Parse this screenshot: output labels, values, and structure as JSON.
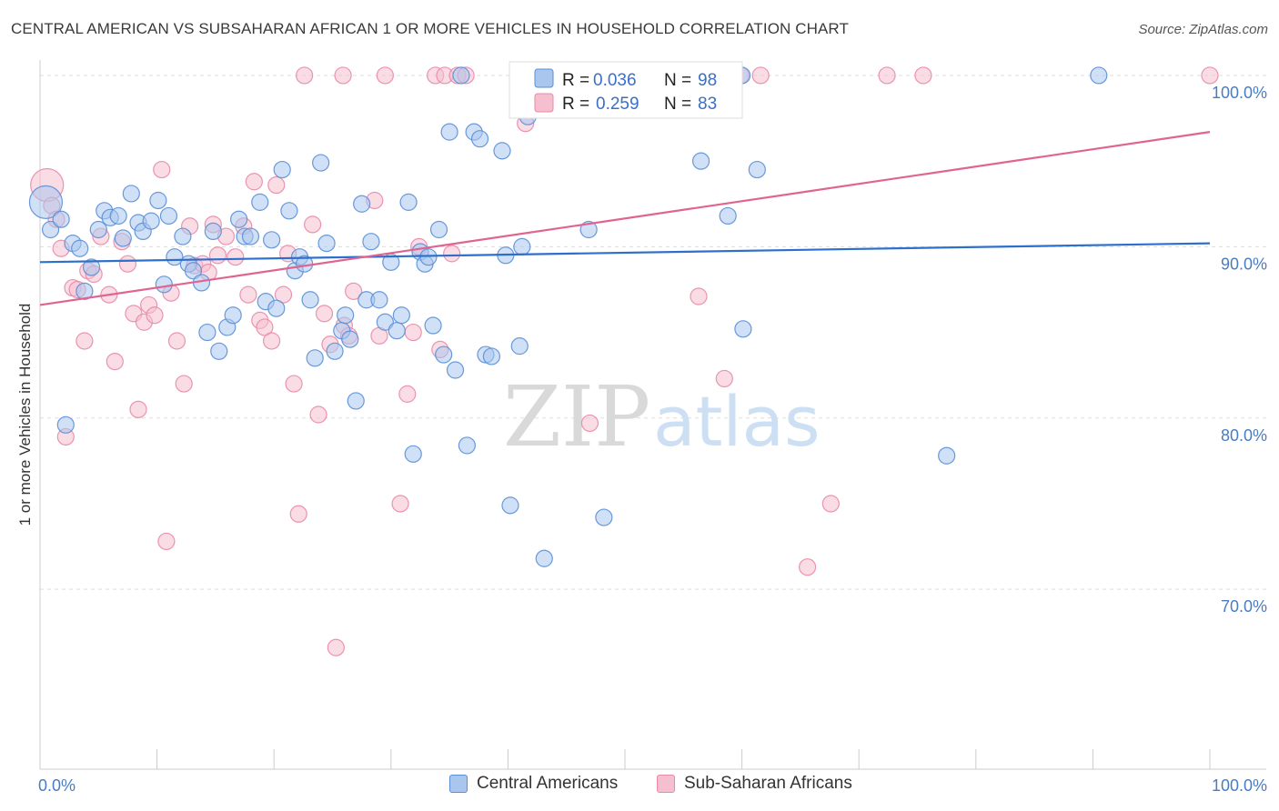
{
  "title": "CENTRAL AMERICAN VS SUBSAHARAN AFRICAN 1 OR MORE VEHICLES IN HOUSEHOLD CORRELATION CHART",
  "source": "Source: ZipAtlas.com",
  "watermark": {
    "zip": "ZIP",
    "atlas": "atlas"
  },
  "legend_stats": [
    {
      "r_label": "R =",
      "r_value": "0.036",
      "n_label": "N =",
      "n_value": "98"
    },
    {
      "r_label": "R =",
      "r_value": "0.259",
      "n_label": "N =",
      "n_value": "83"
    }
  ],
  "legend": {
    "central": "Central Americans",
    "subsaharan": "Sub-Saharan Africans"
  },
  "colors": {
    "central_fill": "#a9c7ee",
    "central_stroke": "#5a8fd6",
    "central_line": "#2f6fcc",
    "subsaharan_fill": "#f6bfd0",
    "subsaharan_stroke": "#e88aa8",
    "subsaharan_line": "#e06492",
    "tick_text": "#4a7cc4",
    "grid": "#dddddd"
  },
  "chart_data": {
    "type": "scatter",
    "title": "CENTRAL AMERICAN VS SUBSAHARAN AFRICAN 1 OR MORE VEHICLES IN HOUSEHOLD CORRELATION CHART",
    "xlabel": "",
    "ylabel": "1 or more Vehicles in Household",
    "xlim": [
      0,
      100
    ],
    "ylim": [
      59.5,
      100.9
    ],
    "x_tick_labels": [
      "0.0%",
      "100.0%"
    ],
    "y_ticks": [
      70,
      80,
      90,
      100
    ],
    "y_tick_labels": [
      "70.0%",
      "80.0%",
      "90.0%",
      "100.0%"
    ],
    "series": [
      {
        "name": "Central Americans",
        "r": 0.036,
        "n": 98,
        "trend": {
          "x": [
            0,
            100
          ],
          "y": [
            89.1,
            90.2
          ]
        },
        "points": [
          [
            0.5,
            92.6
          ],
          [
            0.9,
            91.0
          ],
          [
            1.8,
            91.6
          ],
          [
            2.2,
            79.6
          ],
          [
            2.8,
            90.2
          ],
          [
            3.4,
            89.9
          ],
          [
            3.8,
            87.4
          ],
          [
            4.4,
            88.8
          ],
          [
            5.0,
            91.0
          ],
          [
            5.5,
            92.1
          ],
          [
            6.0,
            91.7
          ],
          [
            6.7,
            91.8
          ],
          [
            7.1,
            90.5
          ],
          [
            7.8,
            93.1
          ],
          [
            8.4,
            91.4
          ],
          [
            8.8,
            90.9
          ],
          [
            9.5,
            91.5
          ],
          [
            10.1,
            92.7
          ],
          [
            10.6,
            87.8
          ],
          [
            11.0,
            91.8
          ],
          [
            11.5,
            89.4
          ],
          [
            12.2,
            90.6
          ],
          [
            12.7,
            89.0
          ],
          [
            13.1,
            88.6
          ],
          [
            13.8,
            87.9
          ],
          [
            14.3,
            85.0
          ],
          [
            14.8,
            90.9
          ],
          [
            15.3,
            83.9
          ],
          [
            16.0,
            85.3
          ],
          [
            16.5,
            86.0
          ],
          [
            17.0,
            91.6
          ],
          [
            17.5,
            90.6
          ],
          [
            18.0,
            90.6
          ],
          [
            18.8,
            92.6
          ],
          [
            19.3,
            86.8
          ],
          [
            19.8,
            90.4
          ],
          [
            20.2,
            86.4
          ],
          [
            20.7,
            94.5
          ],
          [
            21.3,
            92.1
          ],
          [
            21.8,
            88.6
          ],
          [
            22.2,
            89.4
          ],
          [
            22.6,
            89.0
          ],
          [
            23.1,
            86.9
          ],
          [
            23.5,
            83.5
          ],
          [
            24.0,
            94.9
          ],
          [
            24.5,
            90.2
          ],
          [
            25.2,
            83.9
          ],
          [
            25.8,
            85.1
          ],
          [
            26.1,
            86.0
          ],
          [
            26.5,
            84.6
          ],
          [
            27.0,
            81.0
          ],
          [
            27.5,
            92.5
          ],
          [
            27.9,
            86.9
          ],
          [
            28.3,
            90.3
          ],
          [
            29.0,
            86.9
          ],
          [
            29.5,
            85.6
          ],
          [
            30.0,
            89.1
          ],
          [
            30.5,
            85.1
          ],
          [
            30.9,
            86.0
          ],
          [
            31.5,
            92.6
          ],
          [
            31.9,
            77.9
          ],
          [
            32.5,
            89.7
          ],
          [
            32.9,
            89.0
          ],
          [
            33.2,
            89.4
          ],
          [
            33.6,
            85.4
          ],
          [
            34.1,
            91.0
          ],
          [
            34.5,
            83.7
          ],
          [
            35.0,
            96.7
          ],
          [
            35.5,
            82.8
          ],
          [
            36.0,
            100.0
          ],
          [
            36.5,
            78.4
          ],
          [
            37.1,
            96.7
          ],
          [
            37.6,
            96.3
          ],
          [
            38.1,
            83.7
          ],
          [
            38.6,
            83.6
          ],
          [
            39.5,
            95.6
          ],
          [
            39.8,
            89.5
          ],
          [
            40.2,
            74.9
          ],
          [
            41.0,
            84.2
          ],
          [
            41.2,
            90.0
          ],
          [
            41.7,
            97.6
          ],
          [
            42.3,
            100.0
          ],
          [
            43.1,
            71.8
          ],
          [
            46.5,
            100.0
          ],
          [
            46.9,
            91.0
          ],
          [
            48.2,
            74.2
          ],
          [
            56.5,
            95.0
          ],
          [
            58.8,
            91.8
          ],
          [
            60.0,
            100.0
          ],
          [
            60.1,
            85.2
          ],
          [
            61.3,
            94.5
          ],
          [
            77.5,
            77.8
          ],
          [
            90.5,
            100.0
          ]
        ]
      },
      {
        "name": "Sub-Saharan Africans",
        "r": 0.259,
        "n": 83,
        "trend": {
          "x": [
            0,
            100
          ],
          "y": [
            86.6,
            96.7
          ]
        },
        "points": [
          [
            0.6,
            93.6
          ],
          [
            1.0,
            92.4
          ],
          [
            1.4,
            91.6
          ],
          [
            1.8,
            89.9
          ],
          [
            2.2,
            78.9
          ],
          [
            2.8,
            87.6
          ],
          [
            3.2,
            87.5
          ],
          [
            3.8,
            84.5
          ],
          [
            4.1,
            88.6
          ],
          [
            4.6,
            88.4
          ],
          [
            5.2,
            90.6
          ],
          [
            5.9,
            87.2
          ],
          [
            6.4,
            83.3
          ],
          [
            7.0,
            90.3
          ],
          [
            7.5,
            89.0
          ],
          [
            8.0,
            86.1
          ],
          [
            8.4,
            80.5
          ],
          [
            8.9,
            85.6
          ],
          [
            9.3,
            86.6
          ],
          [
            9.8,
            86.0
          ],
          [
            10.4,
            94.5
          ],
          [
            10.8,
            72.8
          ],
          [
            11.2,
            87.3
          ],
          [
            11.7,
            84.5
          ],
          [
            12.3,
            82.0
          ],
          [
            12.8,
            91.2
          ],
          [
            13.2,
            88.9
          ],
          [
            13.9,
            89.0
          ],
          [
            14.4,
            88.5
          ],
          [
            14.8,
            91.3
          ],
          [
            15.2,
            89.5
          ],
          [
            15.9,
            90.6
          ],
          [
            16.7,
            89.4
          ],
          [
            17.4,
            91.2
          ],
          [
            17.8,
            87.2
          ],
          [
            18.3,
            93.8
          ],
          [
            18.8,
            85.7
          ],
          [
            19.2,
            85.3
          ],
          [
            19.8,
            84.5
          ],
          [
            20.2,
            93.6
          ],
          [
            20.8,
            87.2
          ],
          [
            21.2,
            89.6
          ],
          [
            21.7,
            82.0
          ],
          [
            22.1,
            74.4
          ],
          [
            22.6,
            100.0
          ],
          [
            23.3,
            91.3
          ],
          [
            23.8,
            80.2
          ],
          [
            24.3,
            86.1
          ],
          [
            24.8,
            84.3
          ],
          [
            25.3,
            66.6
          ],
          [
            25.9,
            100.0
          ],
          [
            26.0,
            85.4
          ],
          [
            26.4,
            84.8
          ],
          [
            26.8,
            87.4
          ],
          [
            28.6,
            92.7
          ],
          [
            29.0,
            84.8
          ],
          [
            29.5,
            100.0
          ],
          [
            30.8,
            75.0
          ],
          [
            31.4,
            81.4
          ],
          [
            31.9,
            85.0
          ],
          [
            32.4,
            90.0
          ],
          [
            33.8,
            100.0
          ],
          [
            34.2,
            84.0
          ],
          [
            34.6,
            100.0
          ],
          [
            35.2,
            89.6
          ],
          [
            35.7,
            100.0
          ],
          [
            36.4,
            100.0
          ],
          [
            41.5,
            97.2
          ],
          [
            43.6,
            100.0
          ],
          [
            45.0,
            100.0
          ],
          [
            46.2,
            100.0
          ],
          [
            47.0,
            79.7
          ],
          [
            49.2,
            100.0
          ],
          [
            56.3,
            87.1
          ],
          [
            58.5,
            82.3
          ],
          [
            59.9,
            100.0
          ],
          [
            61.6,
            100.0
          ],
          [
            65.6,
            71.3
          ],
          [
            67.6,
            75.0
          ],
          [
            72.4,
            100.0
          ],
          [
            75.5,
            100.0
          ],
          [
            100.0,
            100.0
          ]
        ]
      }
    ]
  }
}
